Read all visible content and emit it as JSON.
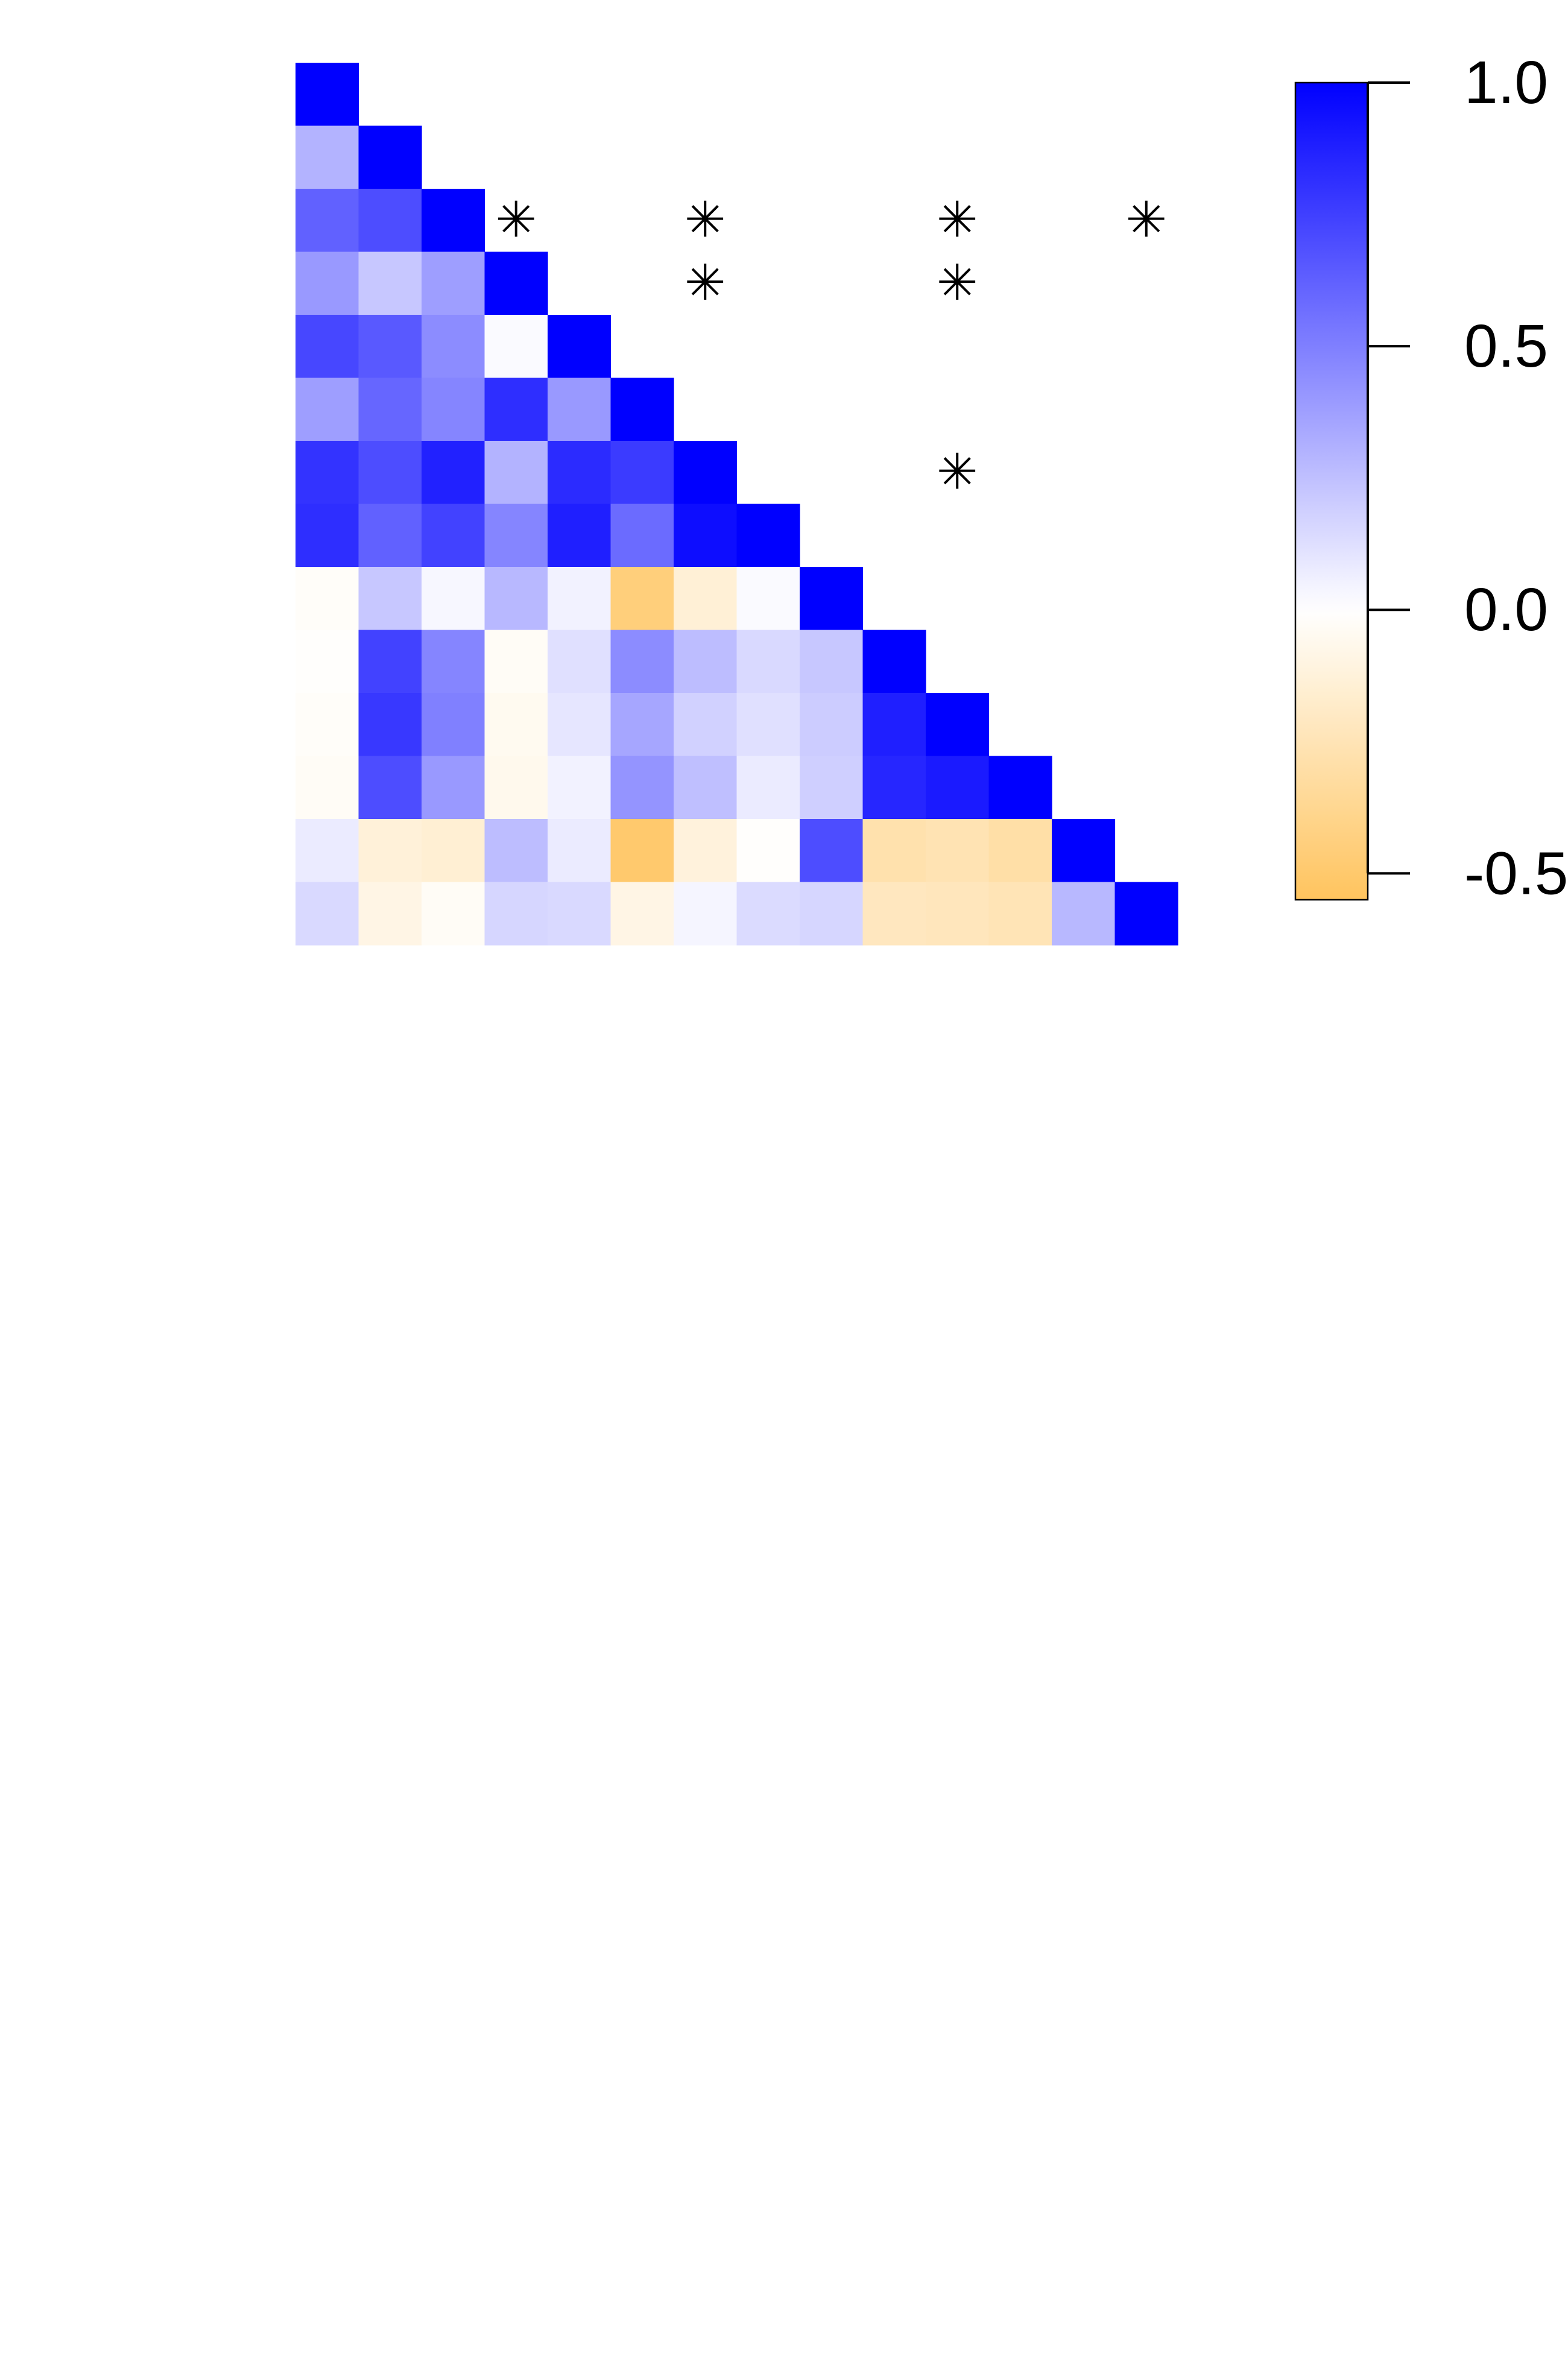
{
  "chart_data": {
    "type": "heatmap",
    "title": "",
    "xlabel": "",
    "ylabel": "",
    "grid": false,
    "layout": "lower-triangle",
    "n": 14,
    "cells": [
      [
        1.0
      ],
      [
        0.3,
        1.0
      ],
      [
        0.62,
        0.7,
        1.0
      ],
      [
        0.4,
        0.22,
        0.38,
        1.0
      ],
      [
        0.72,
        0.65,
        0.45,
        0.02,
        1.0
      ],
      [
        0.38,
        0.6,
        0.48,
        0.82,
        0.4,
        1.0
      ],
      [
        0.8,
        0.7,
        0.87,
        0.3,
        0.83,
        0.77,
        1.0
      ],
      [
        0.82,
        0.62,
        0.74,
        0.48,
        0.88,
        0.58,
        0.95,
        1.0
      ],
      [
        -0.02,
        0.22,
        0.03,
        0.28,
        0.05,
        -0.45,
        -0.14,
        0.02,
        1.0
      ],
      [
        -0.01,
        0.74,
        0.48,
        -0.03,
        0.12,
        0.45,
        0.26,
        0.15,
        0.22,
        1.0
      ],
      [
        -0.02,
        0.78,
        0.5,
        -0.05,
        0.1,
        0.35,
        0.18,
        0.12,
        0.2,
        0.88,
        1.0
      ],
      [
        -0.03,
        0.7,
        0.4,
        -0.06,
        0.05,
        0.42,
        0.25,
        0.08,
        0.19,
        0.85,
        0.9,
        1.0
      ],
      [
        0.08,
        -0.13,
        -0.15,
        0.26,
        0.08,
        -0.5,
        -0.12,
        -0.01,
        0.7,
        -0.28,
        -0.26,
        -0.3,
        1.0
      ],
      [
        0.15,
        -0.09,
        -0.03,
        0.16,
        0.15,
        -0.09,
        0.04,
        0.14,
        0.16,
        -0.22,
        -0.23,
        -0.25,
        0.28,
        1.0
      ]
    ],
    "significant": [
      [
        11,
        3
      ],
      [
        11,
        6
      ],
      [
        10,
        6
      ],
      [
        11,
        10
      ],
      [
        10,
        10
      ],
      [
        7,
        10
      ],
      [
        11,
        13
      ]
    ],
    "significance_marker": "✳",
    "colorbar": {
      "min": -0.55,
      "max": 1.0,
      "ticks": [
        "1.0",
        "0.5",
        "0.0",
        "-0.5"
      ],
      "tick_values": [
        1.0,
        0.5,
        0.0,
        -0.5
      ]
    },
    "colors": {
      "positive": "#0000ff",
      "zero": "#ffffff",
      "negative": "#ffc45e"
    }
  }
}
